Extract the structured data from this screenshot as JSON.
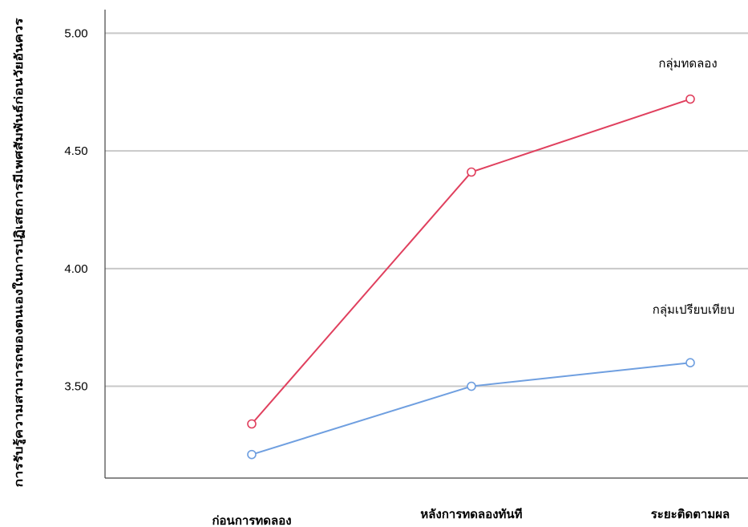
{
  "chart_data": {
    "type": "line",
    "ylabel": "การรับรู้ความสามารถของตนเองในการปฏิเสธการมีเพศสัมพันธ์ก่อนวัยอันควร",
    "xlabel": "",
    "categories": [
      "ก่อนการทดลอง",
      "หลังการทดลองทันที",
      "ระยะติดตามผล"
    ],
    "ylim": [
      3.11,
      5.1
    ],
    "yticks": [
      3.5,
      4.0,
      4.5,
      5.0
    ],
    "ytick_labels": [
      "3.50",
      "4.00",
      "4.50",
      "5.00"
    ],
    "grid": true,
    "series": [
      {
        "name": "กลุ่มทดลอง",
        "values": [
          3.34,
          4.41,
          4.72
        ],
        "color": "#e0405e"
      },
      {
        "name": "กลุ่มเปรียบเทียบ",
        "values": [
          3.21,
          3.5,
          3.6
        ],
        "color": "#6f9fe0"
      }
    ]
  }
}
